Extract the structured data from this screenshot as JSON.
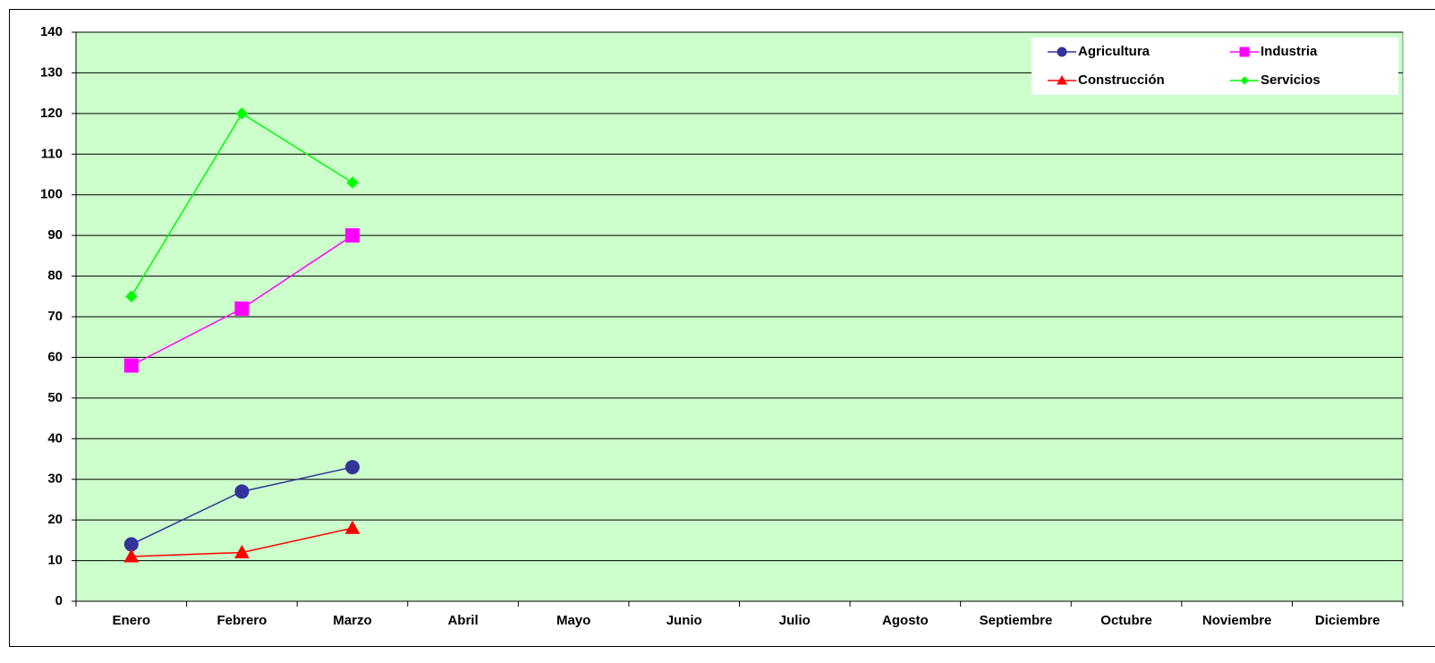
{
  "chart_data": {
    "type": "line",
    "categories": [
      "Enero",
      "Febrero",
      "Marzo",
      "Abril",
      "Mayo",
      "Junio",
      "Julio",
      "Agosto",
      "Septiembre",
      "Octubre",
      "Noviembre",
      "Diciembre"
    ],
    "series": [
      {
        "name": "Agricultura",
        "color": "#333399",
        "marker": "circle",
        "values": [
          14,
          27,
          33,
          null,
          null,
          null,
          null,
          null,
          null,
          null,
          null,
          null
        ]
      },
      {
        "name": "Industria",
        "color": "#ff00ff",
        "marker": "square",
        "values": [
          58,
          72,
          90,
          null,
          null,
          null,
          null,
          null,
          null,
          null,
          null,
          null
        ]
      },
      {
        "name": "Construcción",
        "color": "#ff0000",
        "marker": "triangle",
        "values": [
          11,
          12,
          18,
          null,
          null,
          null,
          null,
          null,
          null,
          null,
          null,
          null
        ]
      },
      {
        "name": "Servicios",
        "color": "#00ff00",
        "marker": "diamond",
        "values": [
          75,
          120,
          103,
          null,
          null,
          null,
          null,
          null,
          null,
          null,
          null,
          null
        ]
      }
    ],
    "ylim": [
      0,
      140
    ],
    "yticks": [
      0,
      10,
      20,
      30,
      40,
      50,
      60,
      70,
      80,
      90,
      100,
      110,
      120,
      130,
      140
    ],
    "grid": true,
    "plot_background": "#ccffcc",
    "legend": "top-right"
  }
}
